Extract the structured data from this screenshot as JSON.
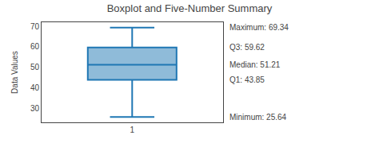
{
  "chart_data": {
    "type": "box",
    "title": "Boxplot and Five-Number Summary",
    "ylabel": "Data Values",
    "categories": [
      "1"
    ],
    "minimum": 25.64,
    "q1": 43.85,
    "median": 51.21,
    "q3": 59.62,
    "maximum": 69.34,
    "annotations": [
      {
        "text": "Maximum: 69.34",
        "y": 69.34
      },
      {
        "text": "Q3: 59.62",
        "y": 59.62
      },
      {
        "text": "Median: 51.21",
        "y": 51.21
      },
      {
        "text": "Q1: 43.85",
        "y": 43.85
      },
      {
        "text": "Minimum: 25.64",
        "y": 25.64
      }
    ],
    "ylim": [
      23,
      72
    ],
    "yticks": [
      30,
      40,
      50,
      60,
      70
    ],
    "grid": false
  }
}
